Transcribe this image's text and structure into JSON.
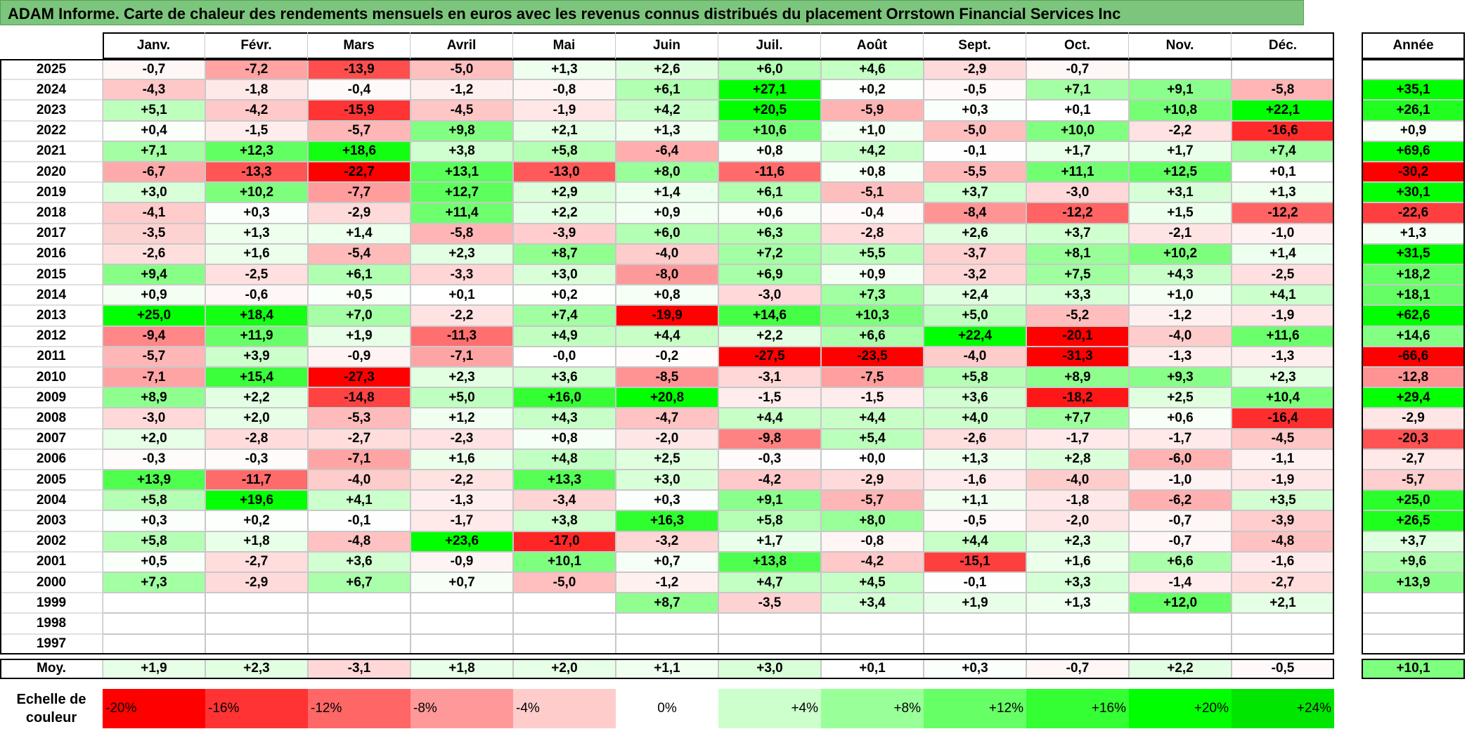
{
  "title": "ADAM Informe. Carte de chaleur des rendements mensuels en euros avec les revenus connus distribués du placement Orrstown Financial Services Inc",
  "chart_data": {
    "type": "heatmap",
    "months": [
      "Janv.",
      "Févr.",
      "Mars",
      "Avril",
      "Mai",
      "Juin",
      "Juil.",
      "Août",
      "Sept.",
      "Oct.",
      "Nov.",
      "Déc."
    ],
    "year_header": "Année",
    "rows": [
      {
        "year": "2025",
        "values": [
          "-0,7",
          "-7,2",
          "-13,9",
          "-5,0",
          "+1,3",
          "+2,6",
          "+6,0",
          "+4,6",
          "-2,9",
          "-0,7",
          "",
          ""
        ],
        "annual": ""
      },
      {
        "year": "2024",
        "values": [
          "-4,3",
          "-1,8",
          "-0,4",
          "-1,2",
          "-0,8",
          "+6,1",
          "+27,1",
          "+0,2",
          "-0,5",
          "+7,1",
          "+9,1",
          "-5,8"
        ],
        "annual": "+35,1"
      },
      {
        "year": "2023",
        "values": [
          "+5,1",
          "-4,2",
          "-15,9",
          "-4,5",
          "-1,9",
          "+4,2",
          "+20,5",
          "-5,9",
          "+0,3",
          "+0,1",
          "+10,8",
          "+22,1"
        ],
        "annual": "+26,1"
      },
      {
        "year": "2022",
        "values": [
          "+0,4",
          "-1,5",
          "-5,7",
          "+9,8",
          "+2,1",
          "+1,3",
          "+10,6",
          "+1,0",
          "-5,0",
          "+10,0",
          "-2,2",
          "-16,6"
        ],
        "annual": "+0,9"
      },
      {
        "year": "2021",
        "values": [
          "+7,1",
          "+12,3",
          "+18,6",
          "+3,8",
          "+5,8",
          "-6,4",
          "+0,8",
          "+4,2",
          "-0,1",
          "+1,7",
          "+1,7",
          "+7,4"
        ],
        "annual": "+69,6"
      },
      {
        "year": "2020",
        "values": [
          "-6,7",
          "-13,3",
          "-22,7",
          "+13,1",
          "-13,0",
          "+8,0",
          "-11,6",
          "+0,8",
          "-5,5",
          "+11,1",
          "+12,5",
          "+0,1"
        ],
        "annual": "-30,2"
      },
      {
        "year": "2019",
        "values": [
          "+3,0",
          "+10,2",
          "-7,7",
          "+12,7",
          "+2,9",
          "+1,4",
          "+6,1",
          "-5,1",
          "+3,7",
          "-3,0",
          "+3,1",
          "+1,3"
        ],
        "annual": "+30,1"
      },
      {
        "year": "2018",
        "values": [
          "-4,1",
          "+0,3",
          "-2,9",
          "+11,4",
          "+2,2",
          "+0,9",
          "+0,6",
          "-0,4",
          "-8,4",
          "-12,2",
          "+1,5",
          "-12,2"
        ],
        "annual": "-22,6"
      },
      {
        "year": "2017",
        "values": [
          "-3,5",
          "+1,3",
          "+1,4",
          "-5,8",
          "-3,9",
          "+6,0",
          "+6,3",
          "-2,8",
          "+2,6",
          "+3,7",
          "-2,1",
          "-1,0"
        ],
        "annual": "+1,3"
      },
      {
        "year": "2016",
        "values": [
          "-2,6",
          "+1,6",
          "-5,4",
          "+2,3",
          "+8,7",
          "-4,0",
          "+7,2",
          "+5,5",
          "-3,7",
          "+8,1",
          "+10,2",
          "+1,4"
        ],
        "annual": "+31,5"
      },
      {
        "year": "2015",
        "values": [
          "+9,4",
          "-2,5",
          "+6,1",
          "-3,3",
          "+3,0",
          "-8,0",
          "+6,9",
          "+0,9",
          "-3,2",
          "+7,5",
          "+4,3",
          "-2,5"
        ],
        "annual": "+18,2"
      },
      {
        "year": "2014",
        "values": [
          "+0,9",
          "-0,6",
          "+0,5",
          "+0,1",
          "+0,2",
          "+0,8",
          "-3,0",
          "+7,3",
          "+2,4",
          "+3,3",
          "+1,0",
          "+4,1"
        ],
        "annual": "+18,1"
      },
      {
        "year": "2013",
        "values": [
          "+25,0",
          "+18,4",
          "+7,0",
          "-2,2",
          "+7,4",
          "-19,9",
          "+14,6",
          "+10,3",
          "+5,0",
          "-5,2",
          "-1,2",
          "-1,9"
        ],
        "annual": "+62,6"
      },
      {
        "year": "2012",
        "values": [
          "-9,4",
          "+11,9",
          "+1,9",
          "-11,3",
          "+4,9",
          "+4,4",
          "+2,2",
          "+6,6",
          "+22,4",
          "-20,1",
          "-4,0",
          "+11,6"
        ],
        "annual": "+14,6"
      },
      {
        "year": "2011",
        "values": [
          "-5,7",
          "+3,9",
          "-0,9",
          "-7,1",
          "-0,0",
          "-0,2",
          "-27,5",
          "-23,5",
          "-4,0",
          "-31,3",
          "-1,3",
          "-1,3"
        ],
        "annual": "-66,6"
      },
      {
        "year": "2010",
        "values": [
          "-7,1",
          "+15,4",
          "-27,3",
          "+2,3",
          "+3,6",
          "-8,5",
          "-3,1",
          "-7,5",
          "+5,8",
          "+8,9",
          "+9,3",
          "+2,3"
        ],
        "annual": "-12,8"
      },
      {
        "year": "2009",
        "values": [
          "+8,9",
          "+2,2",
          "-14,8",
          "+5,0",
          "+16,0",
          "+20,8",
          "-1,5",
          "-1,5",
          "+3,6",
          "-18,2",
          "+2,5",
          "+10,4"
        ],
        "annual": "+29,4"
      },
      {
        "year": "2008",
        "values": [
          "-3,0",
          "+2,0",
          "-5,3",
          "+1,2",
          "+4,3",
          "-4,7",
          "+4,4",
          "+4,4",
          "+4,0",
          "+7,7",
          "+0,6",
          "-16,4"
        ],
        "annual": "-2,9"
      },
      {
        "year": "2007",
        "values": [
          "+2,0",
          "-2,8",
          "-2,7",
          "-2,3",
          "+0,8",
          "-2,0",
          "-9,8",
          "+5,4",
          "-2,6",
          "-1,7",
          "-1,7",
          "-4,5"
        ],
        "annual": "-20,3"
      },
      {
        "year": "2006",
        "values": [
          "-0,3",
          "-0,3",
          "-7,1",
          "+1,6",
          "+4,8",
          "+2,5",
          "-0,3",
          "+0,0",
          "+1,3",
          "+2,8",
          "-6,0",
          "-1,1"
        ],
        "annual": "-2,7"
      },
      {
        "year": "2005",
        "values": [
          "+13,9",
          "-11,7",
          "-4,0",
          "-2,2",
          "+13,3",
          "+3,0",
          "-4,2",
          "-2,9",
          "-1,6",
          "-4,0",
          "-1,0",
          "-1,9"
        ],
        "annual": "-5,7"
      },
      {
        "year": "2004",
        "values": [
          "+5,8",
          "+19,6",
          "+4,1",
          "-1,3",
          "-3,4",
          "+0,3",
          "+9,1",
          "-5,7",
          "+1,1",
          "-1,8",
          "-6,2",
          "+3,5"
        ],
        "annual": "+25,0"
      },
      {
        "year": "2003",
        "values": [
          "+0,3",
          "+0,2",
          "-0,1",
          "-1,7",
          "+3,8",
          "+16,3",
          "+5,8",
          "+8,0",
          "-0,5",
          "-2,0",
          "-0,7",
          "-3,9"
        ],
        "annual": "+26,5"
      },
      {
        "year": "2002",
        "values": [
          "+5,8",
          "+1,8",
          "-4,8",
          "+23,6",
          "-17,0",
          "-3,2",
          "+1,7",
          "-0,8",
          "+4,4",
          "+2,3",
          "-0,7",
          "-4,8"
        ],
        "annual": "+3,7"
      },
      {
        "year": "2001",
        "values": [
          "+0,5",
          "-2,7",
          "+3,6",
          "-0,9",
          "+10,1",
          "+0,7",
          "+13,8",
          "-4,2",
          "-15,1",
          "+1,6",
          "+6,6",
          "-1,6"
        ],
        "annual": "+9,6"
      },
      {
        "year": "2000",
        "values": [
          "+7,3",
          "-2,9",
          "+6,7",
          "+0,7",
          "-5,0",
          "-1,2",
          "+4,7",
          "+4,5",
          "-0,1",
          "+3,3",
          "-1,4",
          "-2,7"
        ],
        "annual": "+13,9"
      },
      {
        "year": "1999",
        "values": [
          "",
          "",
          "",
          "",
          "",
          "+8,7",
          "-3,5",
          "+3,4",
          "+1,9",
          "+1,3",
          "+12,0",
          "+2,1"
        ],
        "annual": ""
      },
      {
        "year": "1998",
        "values": [
          "",
          "",
          "",
          "",
          "",
          "",
          "",
          "",
          "",
          "",
          "",
          ""
        ],
        "annual": ""
      },
      {
        "year": "1997",
        "values": [
          "",
          "",
          "",
          "",
          "",
          "",
          "",
          "",
          "",
          "",
          "",
          ""
        ],
        "annual": ""
      }
    ],
    "average": {
      "label": "Moy.",
      "values": [
        "+1,9",
        "+2,3",
        "-3,1",
        "+1,8",
        "+2,0",
        "+1,1",
        "+3,0",
        "+0,1",
        "+0,3",
        "-0,7",
        "+2,2",
        "-0,5"
      ],
      "annual": "+10,1"
    },
    "color_scale": {
      "label_line1": "Echelle de",
      "label_line2": "couleur",
      "stops": [
        {
          "label": "-20%",
          "value": -20,
          "color": "#ff0000"
        },
        {
          "label": "-16%",
          "value": -16,
          "color": "#ff3333"
        },
        {
          "label": "-12%",
          "value": -12,
          "color": "#ff6666"
        },
        {
          "label": "-8%",
          "value": -8,
          "color": "#ff9999"
        },
        {
          "label": "-4%",
          "value": -4,
          "color": "#ffcccc"
        },
        {
          "label": "0%",
          "value": 0,
          "color": "#ffffff"
        },
        {
          "label": "+4%",
          "value": 4,
          "color": "#ccffcc"
        },
        {
          "label": "+8%",
          "value": 8,
          "color": "#99ff99"
        },
        {
          "label": "+12%",
          "value": 12,
          "color": "#66ff66"
        },
        {
          "label": "+16%",
          "value": 16,
          "color": "#33ff33"
        },
        {
          "label": "+20%",
          "value": 20,
          "color": "#00ff00"
        },
        {
          "label": "+24%",
          "value": 24,
          "color": "#00e600"
        }
      ]
    },
    "positive_color": "#00ff00",
    "negative_color": "#ff0000"
  }
}
